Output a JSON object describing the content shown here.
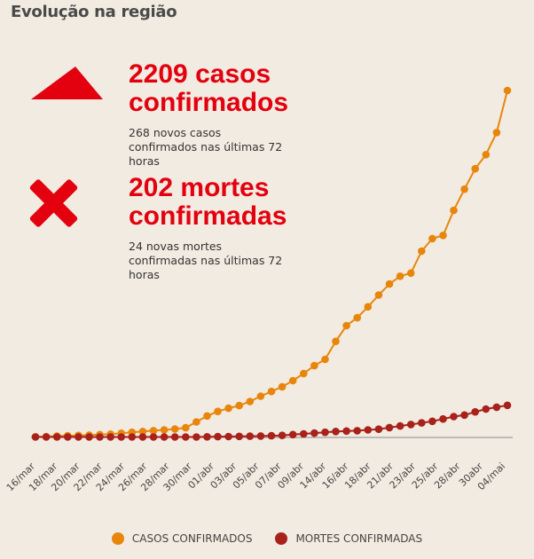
{
  "title": "Evolução na região",
  "stats": {
    "cases": {
      "headline": "2209 casos confirmados",
      "detail": "268 novos casos confirmados nas últimas 72 horas"
    },
    "deaths": {
      "headline": "202 mortes confirmadas",
      "detail": "24 novas mortes confirmadas nas últimas 72 horas"
    }
  },
  "colors": {
    "cases": "#e8860c",
    "deaths": "#a8211b",
    "up_arrow": "#e3000f",
    "x_mark": "#e3000f",
    "baseline": "#8a8a8a"
  },
  "icons": {
    "cases": "up-triangle-icon",
    "deaths": "x-mark-icon"
  },
  "legend": [
    "CASOS CONFIRMADOS",
    "MORTES CONFIRMADAS"
  ],
  "chart_data": {
    "type": "line",
    "x_tick_labels": [
      "16/mar",
      "18/mar",
      "20/mar",
      "22/mar",
      "24/mar",
      "26/mar",
      "28/mar",
      "30/mar",
      "01/abr",
      "03/abr",
      "05/abr",
      "07/abr",
      "09/abr",
      "14/abr",
      "16/abr",
      "18/abr",
      "21/abr",
      "23/abr",
      "25/abr",
      "28/abr",
      "30abr",
      "04/mai"
    ],
    "ylim": [
      0,
      2209
    ],
    "grid": false,
    "legend_position": "bottom",
    "series": [
      {
        "name": "CASOS CONFIRMADOS",
        "values": [
          1,
          2,
          6,
          8,
          10,
          12,
          15,
          18,
          24,
          30,
          35,
          40,
          45,
          51,
          59,
          96,
          134,
          163,
          183,
          200,
          226,
          260,
          290,
          320,
          359,
          405,
          455,
          495,
          610,
          710,
          760,
          830,
          905,
          975,
          1025,
          1045,
          1185,
          1265,
          1285,
          1445,
          1580,
          1710,
          1800,
          1941,
          2209
        ]
      },
      {
        "name": "MORTES CONFIRMADAS",
        "values": [
          0,
          0,
          0,
          0,
          0,
          0,
          0,
          0,
          0,
          0,
          0,
          0,
          0,
          0,
          0,
          0,
          1,
          2,
          3,
          4,
          5,
          6,
          8,
          10,
          15,
          20,
          25,
          30,
          35,
          38,
          40,
          45,
          50,
          60,
          70,
          80,
          90,
          100,
          115,
          130,
          140,
          160,
          178,
          190,
          202
        ]
      }
    ]
  }
}
